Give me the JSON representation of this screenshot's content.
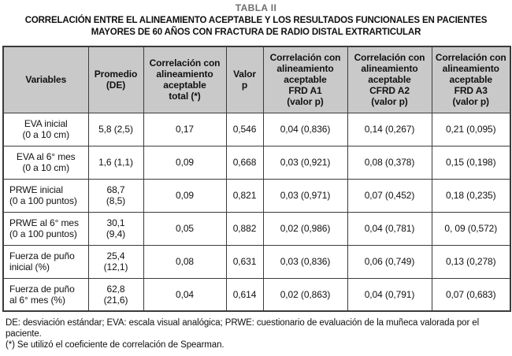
{
  "title": {
    "label": "TABLA II",
    "line1": "CORRELACIÓN ENTRE EL ALINEAMIENTO ACEPTABLE Y LOS RESULTADOS FUNCIONALES EN PACIENTES",
    "line2": "MAYORES DE 60 AÑOS CON FRACTURA DE RADIO DISTAL EXTRARTICULAR"
  },
  "colors": {
    "header_bg": "#c9c9c9",
    "border": "#3b3b3b",
    "table_label_gray": "#6e6e6e",
    "text": "#0f0f0f"
  },
  "table": {
    "headers": [
      "Variables",
      "Promedio\n(DE)",
      "Correlación con\nalineamiento\naceptable\ntotal (*)",
      "Valor\np",
      "Correlación con\nalineamiento\naceptable\nFRD A1\n(valor p)",
      "Correlación con\nalineamiento\naceptable\nCFRD A2\n(valor p)",
      "Correlación con\nalineamiento\naceptable\nFRD A3\n(valor p)"
    ],
    "rows": [
      {
        "cells": [
          "EVA inicial\n(0 a 10 cm)",
          "5,8 (2,5)",
          "0,17",
          "0,546",
          "0,04 (0,836)",
          "0,14 (0,267)",
          "0,21 (0,095)"
        ]
      },
      {
        "cells": [
          "EVA al 6° mes\n(0 a 10 cm)",
          "1,6 (1,1)",
          "0,09",
          "0,668",
          "0,03 (0,921)",
          "0,08 (0,378)",
          "0,15 (0,198)"
        ]
      },
      {
        "cells": [
          "PRWE inicial\n(0 a 100 puntos)",
          "68,7\n(8,5)",
          "0,09",
          "0,821",
          "0,03 (0,971)",
          "0,07 (0,452)",
          "0,18 (0,235)"
        ]
      },
      {
        "cells": [
          "PRWE al 6° mes\n(0 a 100 puntos)",
          "30,1\n(9,4)",
          "0,05",
          "0,882",
          "0,02 (0,986)",
          "0,04 (0,781)",
          "0, 09 (0,572)"
        ]
      },
      {
        "cells": [
          "Fuerza de puño\ninicial (%)",
          "25,4\n(12,1)",
          "0,08",
          "0,631",
          "0,03 (0,836)",
          "0,06 (0,749)",
          "0,13 (0,278)"
        ]
      },
      {
        "cells": [
          "Fuerza de puño\nal 6° mes (%)",
          "62,8\n(21,6)",
          "0,04",
          "0,614",
          "0,02 (0,863)",
          "0,04 (0,791)",
          "0,07 (0,683)"
        ]
      }
    ]
  },
  "footnotes": {
    "line1": "DE: desviación estándar; EVA: escala visual analógica; PRWE: cuestionario de evaluación de la muñeca valorada por el paciente.",
    "line2": "(*) Se utilizó el coeficiente de correlación de Spearman."
  }
}
